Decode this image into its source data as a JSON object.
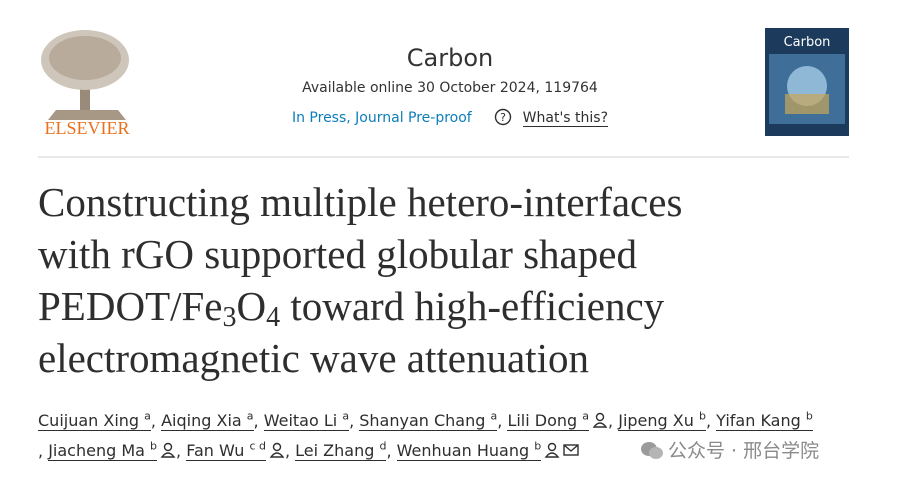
{
  "header": {
    "publisher": "ELSEVIER",
    "journal": "Carbon",
    "availability": "Available online 30 October 2024, 119764",
    "status": "In Press, Journal Pre-proof",
    "help": "What's this?",
    "cover_title": "Carbon"
  },
  "title": {
    "line1": "Constructing multiple hetero-interfaces",
    "line2": "with rGO supported globular shaped",
    "line3": [
      "PEDOT/Fe",
      "3",
      "O",
      "4",
      " toward high-efficiency"
    ],
    "line4": "electromagnetic wave attenuation"
  },
  "authors": {
    "separator": ",",
    "list": [
      {
        "name": "Cuijuan Xing",
        "affil": "a"
      },
      {
        "name": "Aiqing Xia",
        "affil": "a"
      },
      {
        "name": "Weitao Li",
        "affil": "a"
      },
      {
        "name": "Shanyan Chang",
        "affil": "a"
      },
      {
        "name": "Lili Dong",
        "affil": "a"
      },
      {
        "name": "Jipeng Xu",
        "affil": "b"
      },
      {
        "name": "Yifan Kang",
        "affil": "b"
      },
      {
        "name": "Jiacheng Ma",
        "affil": "b"
      },
      {
        "name": "Fan Wu",
        "affil": "c d"
      },
      {
        "name": "Lei Zhang",
        "affil": "d"
      },
      {
        "name": "Wenhuan Huang",
        "affil": "b"
      }
    ]
  },
  "watermark": "公众号 · 邢台学院"
}
